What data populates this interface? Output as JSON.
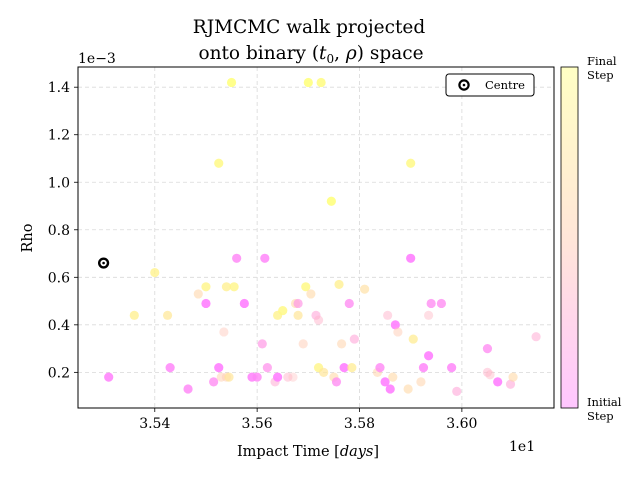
{
  "chart_data": {
    "type": "scatter",
    "title_line1": "RJMCMC walk projected",
    "title_line2": "onto binary (",
    "title_t0": "t",
    "title_t0_sub": "0",
    "title_mid": ", ",
    "title_rho": "ρ",
    "title_end": ") space",
    "xlabel_main": "Impact Time [",
    "xlabel_unit": "days",
    "xlabel_close": "]",
    "ylabel": "Rho",
    "x_offset_label": "1e1",
    "y_offset_label": "1e−3",
    "xlim": [
      35.25,
      36.18
    ],
    "ylim": [
      0.05,
      1.485
    ],
    "x_ticks": [
      35.4,
      35.6,
      35.8,
      36.0
    ],
    "x_tick_labels": [
      "3.54",
      "3.56",
      "3.58",
      "3.60"
    ],
    "y_ticks": [
      0.2,
      0.4,
      0.6,
      0.8,
      1.0,
      1.2,
      1.4
    ],
    "y_tick_labels": [
      "0.2",
      "0.4",
      "0.6",
      "0.8",
      "1.0",
      "1.2",
      "1.4"
    ],
    "grid": true,
    "legend": {
      "placement": "top-right",
      "entries": [
        {
          "label": "Centre",
          "marker": "circle-dot",
          "color": "#000000"
        }
      ]
    },
    "centre": {
      "x": 35.3,
      "y": 0.66
    },
    "colormap": {
      "low": "#ff80ff",
      "high": "#ffff80",
      "name": "spring"
    },
    "colorbar": {
      "top_label": "Final\nStep",
      "bottom_label": "Initial\nStep"
    },
    "series": [
      {
        "points": [
          {
            "x": 35.31,
            "y": 0.18,
            "t": 0.02
          },
          {
            "x": 35.36,
            "y": 0.44,
            "t": 0.88
          },
          {
            "x": 35.4,
            "y": 0.62,
            "t": 0.9
          },
          {
            "x": 35.425,
            "y": 0.44,
            "t": 0.82
          },
          {
            "x": 35.43,
            "y": 0.22,
            "t": 0.05
          },
          {
            "x": 35.465,
            "y": 0.13,
            "t": 0.06
          },
          {
            "x": 35.485,
            "y": 0.53,
            "t": 0.68
          },
          {
            "x": 35.5,
            "y": 0.56,
            "t": 0.92
          },
          {
            "x": 35.5,
            "y": 0.49,
            "t": 0.0
          },
          {
            "x": 35.515,
            "y": 0.16,
            "t": 0.1
          },
          {
            "x": 35.525,
            "y": 1.08,
            "t": 0.95
          },
          {
            "x": 35.525,
            "y": 0.22,
            "t": 0.0
          },
          {
            "x": 35.53,
            "y": 0.18,
            "t": 0.62
          },
          {
            "x": 35.535,
            "y": 0.37,
            "t": 0.55
          },
          {
            "x": 35.54,
            "y": 0.18,
            "t": 0.6
          },
          {
            "x": 35.54,
            "y": 0.56,
            "t": 0.88
          },
          {
            "x": 35.545,
            "y": 0.18,
            "t": 0.8
          },
          {
            "x": 35.55,
            "y": 1.42,
            "t": 1.0
          },
          {
            "x": 35.555,
            "y": 0.56,
            "t": 0.92
          },
          {
            "x": 35.56,
            "y": 0.68,
            "t": 0.06
          },
          {
            "x": 35.575,
            "y": 0.49,
            "t": 0.0
          },
          {
            "x": 35.59,
            "y": 0.18,
            "t": 0.02
          },
          {
            "x": 35.6,
            "y": 0.18,
            "t": 0.06
          },
          {
            "x": 35.61,
            "y": 0.32,
            "t": 0.2
          },
          {
            "x": 35.615,
            "y": 0.68,
            "t": 0.05
          },
          {
            "x": 35.62,
            "y": 0.22,
            "t": 0.15
          },
          {
            "x": 35.635,
            "y": 0.16,
            "t": 0.35
          },
          {
            "x": 35.64,
            "y": 0.18,
            "t": 0.0
          },
          {
            "x": 35.64,
            "y": 0.44,
            "t": 0.9
          },
          {
            "x": 35.65,
            "y": 0.46,
            "t": 0.95
          },
          {
            "x": 35.66,
            "y": 0.18,
            "t": 0.4
          },
          {
            "x": 35.67,
            "y": 0.18,
            "t": 0.5
          },
          {
            "x": 35.675,
            "y": 0.49,
            "t": 0.7
          },
          {
            "x": 35.68,
            "y": 0.49,
            "t": 0.2
          },
          {
            "x": 35.68,
            "y": 0.44,
            "t": 0.8
          },
          {
            "x": 35.69,
            "y": 0.32,
            "t": 0.6
          },
          {
            "x": 35.695,
            "y": 0.56,
            "t": 0.95
          },
          {
            "x": 35.7,
            "y": 1.42,
            "t": 1.0
          },
          {
            "x": 35.705,
            "y": 0.53,
            "t": 0.7
          },
          {
            "x": 35.715,
            "y": 0.44,
            "t": 0.3
          },
          {
            "x": 35.72,
            "y": 0.42,
            "t": 0.4
          },
          {
            "x": 35.72,
            "y": 0.22,
            "t": 0.92
          },
          {
            "x": 35.725,
            "y": 1.42,
            "t": 0.98
          },
          {
            "x": 35.73,
            "y": 0.2,
            "t": 0.8
          },
          {
            "x": 35.745,
            "y": 0.92,
            "t": 1.0
          },
          {
            "x": 35.75,
            "y": 0.18,
            "t": 0.7
          },
          {
            "x": 35.755,
            "y": 0.16,
            "t": 0.1
          },
          {
            "x": 35.76,
            "y": 0.57,
            "t": 0.88
          },
          {
            "x": 35.765,
            "y": 0.32,
            "t": 0.65
          },
          {
            "x": 35.77,
            "y": 0.22,
            "t": 0.0
          },
          {
            "x": 35.78,
            "y": 0.49,
            "t": 0.1
          },
          {
            "x": 35.785,
            "y": 0.22,
            "t": 0.85
          },
          {
            "x": 35.79,
            "y": 0.34,
            "t": 0.3
          },
          {
            "x": 35.81,
            "y": 0.55,
            "t": 0.75
          },
          {
            "x": 35.835,
            "y": 0.2,
            "t": 0.65
          },
          {
            "x": 35.84,
            "y": 0.22,
            "t": 0.08
          },
          {
            "x": 35.85,
            "y": 0.16,
            "t": 0.0
          },
          {
            "x": 35.855,
            "y": 0.44,
            "t": 0.4
          },
          {
            "x": 35.86,
            "y": 0.13,
            "t": 0.0
          },
          {
            "x": 35.865,
            "y": 0.18,
            "t": 0.7
          },
          {
            "x": 35.87,
            "y": 0.4,
            "t": 0.0
          },
          {
            "x": 35.875,
            "y": 0.37,
            "t": 0.6
          },
          {
            "x": 35.895,
            "y": 0.13,
            "t": 0.7
          },
          {
            "x": 35.9,
            "y": 1.08,
            "t": 0.95
          },
          {
            "x": 35.9,
            "y": 0.68,
            "t": 0.0
          },
          {
            "x": 35.905,
            "y": 0.34,
            "t": 0.85
          },
          {
            "x": 35.92,
            "y": 0.16,
            "t": 0.65
          },
          {
            "x": 35.925,
            "y": 0.22,
            "t": 0.05
          },
          {
            "x": 35.935,
            "y": 0.27,
            "t": 0.0
          },
          {
            "x": 35.935,
            "y": 0.44,
            "t": 0.45
          },
          {
            "x": 35.94,
            "y": 0.49,
            "t": 0.1
          },
          {
            "x": 35.96,
            "y": 0.49,
            "t": 0.1
          },
          {
            "x": 35.98,
            "y": 0.22,
            "t": 0.05
          },
          {
            "x": 35.99,
            "y": 0.12,
            "t": 0.3
          },
          {
            "x": 36.05,
            "y": 0.3,
            "t": 0.1
          },
          {
            "x": 36.05,
            "y": 0.2,
            "t": 0.4
          },
          {
            "x": 36.055,
            "y": 0.19,
            "t": 0.45
          },
          {
            "x": 36.07,
            "y": 0.16,
            "t": 0.0
          },
          {
            "x": 36.095,
            "y": 0.15,
            "t": 0.3
          },
          {
            "x": 36.1,
            "y": 0.18,
            "t": 0.7
          },
          {
            "x": 36.145,
            "y": 0.35,
            "t": 0.35
          }
        ]
      }
    ]
  }
}
